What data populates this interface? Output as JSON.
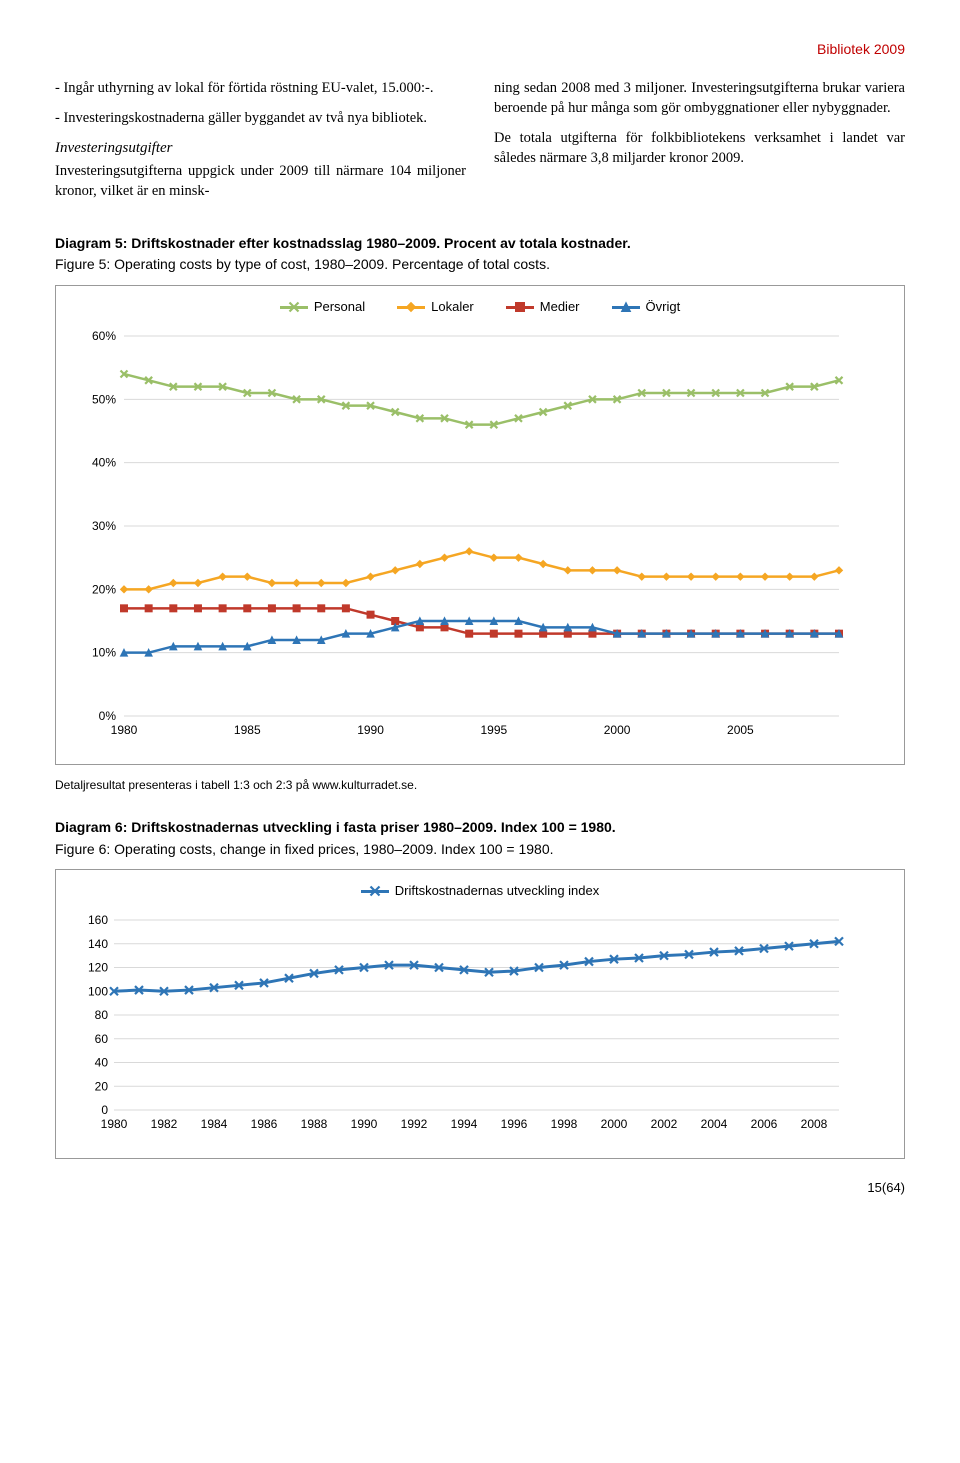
{
  "header": {
    "report_title": "Bibliotek 2009"
  },
  "text": {
    "left_para1": "- Ingår uthyrning av lokal för förtida röstning EU-valet, 15.000:-.",
    "left_para2": "- Investeringskostnaderna gäller byggandet av två nya bibliotek.",
    "left_heading": "Investeringsutgifter",
    "left_para3": "Investeringsutgifterna uppgick under 2009 till närmare 104 miljoner kronor, vilket är en minsk-",
    "right_para1": "ning sedan 2008 med 3 miljoner. Investeringsutgifterna brukar variera beroende på hur många som gör ombyggnationer eller nybyggnader.",
    "right_para2": "De totala utgifterna för folkbibliotekens verksamhet i landet var således närmare 3,8 miljarder kronor 2009."
  },
  "diagram5": {
    "title": "Diagram 5: Driftskostnader efter kostnadsslag 1980–2009. Procent av totala kostnader.",
    "subtitle": "Figure 5: Operating costs by type of cost, 1980–2009. Percentage of total costs.",
    "type": "line",
    "legend": [
      "Personal",
      "Lokaler",
      "Medier",
      "Övrigt"
    ],
    "colors": {
      "Personal": "#9abf68",
      "Lokaler": "#f5a623",
      "Medier": "#c0392b",
      "Övrigt": "#2e75b6"
    },
    "markers": {
      "Personal": "x",
      "Lokaler": "diamond",
      "Medier": "square",
      "Övrigt": "triangle"
    },
    "y": {
      "min": 0,
      "max": 60,
      "step": 10,
      "format": "percent"
    },
    "x": {
      "min": 1980,
      "max": 2009,
      "ticks": [
        1980,
        1985,
        1990,
        1995,
        2000,
        2005
      ]
    },
    "years": [
      1980,
      1981,
      1982,
      1983,
      1984,
      1985,
      1986,
      1987,
      1988,
      1989,
      1990,
      1991,
      1992,
      1993,
      1994,
      1995,
      1996,
      1997,
      1998,
      1999,
      2000,
      2001,
      2002,
      2003,
      2004,
      2005,
      2006,
      2007,
      2008,
      2009
    ],
    "series": {
      "Personal": [
        54,
        53,
        52,
        52,
        52,
        51,
        51,
        50,
        50,
        49,
        49,
        48,
        47,
        47,
        46,
        46,
        47,
        48,
        49,
        50,
        50,
        51,
        51,
        51,
        51,
        51,
        51,
        52,
        52,
        53
      ],
      "Lokaler": [
        20,
        20,
        21,
        21,
        22,
        22,
        21,
        21,
        21,
        21,
        22,
        23,
        24,
        25,
        26,
        25,
        25,
        24,
        23,
        23,
        23,
        22,
        22,
        22,
        22,
        22,
        22,
        22,
        22,
        23
      ],
      "Medier": [
        17,
        17,
        17,
        17,
        17,
        17,
        17,
        17,
        17,
        17,
        16,
        15,
        14,
        14,
        13,
        13,
        13,
        13,
        13,
        13,
        13,
        13,
        13,
        13,
        13,
        13,
        13,
        13,
        13,
        13
      ],
      "Övrigt": [
        10,
        10,
        11,
        11,
        11,
        11,
        12,
        12,
        12,
        13,
        13,
        14,
        15,
        15,
        15,
        15,
        15,
        14,
        14,
        14,
        13,
        13,
        13,
        13,
        13,
        13,
        13,
        13,
        13,
        13
      ]
    },
    "line_width": 2.5,
    "marker_size": 7,
    "grid_color": "#d9d9d9",
    "background": "#ffffff"
  },
  "note5": "Detaljresultat presenteras i tabell 1:3 och 2:3 på www.kulturradet.se.",
  "diagram6": {
    "title": "Diagram 6: Driftskostnadernas utveckling i fasta priser 1980–2009. Index 100 = 1980.",
    "subtitle": "Figure 6: Operating costs, change in fixed prices, 1980–2009. Index 100 = 1980.",
    "type": "line",
    "legend_label": "Driftskostnadernas utveckling index",
    "color": "#2e75b6",
    "marker": "x",
    "y": {
      "min": 0,
      "max": 160,
      "step": 20
    },
    "x": {
      "min": 1980,
      "max": 2009,
      "ticks": [
        1980,
        1982,
        1984,
        1986,
        1988,
        1990,
        1992,
        1994,
        1996,
        1998,
        2000,
        2002,
        2004,
        2006,
        2008
      ]
    },
    "years": [
      1980,
      1981,
      1982,
      1983,
      1984,
      1985,
      1986,
      1987,
      1988,
      1989,
      1990,
      1991,
      1992,
      1993,
      1994,
      1995,
      1996,
      1997,
      1998,
      1999,
      2000,
      2001,
      2002,
      2003,
      2004,
      2005,
      2006,
      2007,
      2008,
      2009
    ],
    "values": [
      100,
      101,
      100,
      101,
      103,
      105,
      107,
      111,
      115,
      118,
      120,
      122,
      122,
      120,
      118,
      116,
      117,
      120,
      122,
      125,
      127,
      128,
      130,
      131,
      133,
      134,
      136,
      138,
      140,
      142
    ],
    "line_width": 3,
    "marker_size": 8,
    "grid_color": "#d9d9d9",
    "background": "#ffffff"
  },
  "page_number": "15(64)"
}
